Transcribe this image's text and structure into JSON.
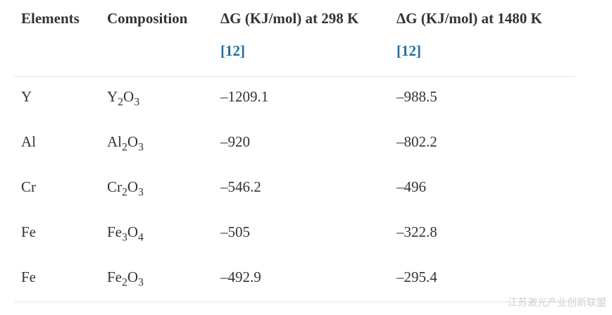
{
  "table": {
    "header": [
      {
        "text": "Elements"
      },
      {
        "text": "Composition"
      },
      {
        "text": "ΔG (KJ/mol) at 298 K",
        "ref": "[12]"
      },
      {
        "text": "ΔG (KJ/mol) at 1480 K",
        "ref": "[12]"
      }
    ],
    "rows": [
      {
        "element": "Y",
        "composition": [
          "Y",
          "2",
          "O",
          "3"
        ],
        "dg298": "–1209.1",
        "dg1480": "–988.5"
      },
      {
        "element": "Al",
        "composition": [
          "Al",
          "2",
          "O",
          "3"
        ],
        "dg298": "–920",
        "dg1480": "–802.2"
      },
      {
        "element": "Cr",
        "composition": [
          "Cr",
          "2",
          "O",
          "3"
        ],
        "dg298": "–546.2",
        "dg1480": "–496"
      },
      {
        "element": "Fe",
        "composition": [
          "Fe",
          "3",
          "O",
          "4"
        ],
        "dg298": "–505",
        "dg1480": "–322.8"
      },
      {
        "element": "Fe",
        "composition": [
          "Fe",
          "2",
          "O",
          "3"
        ],
        "dg298": "–492.9",
        "dg1480": "–295.4"
      }
    ]
  },
  "watermark": "江苏激光产业创新联盟"
}
